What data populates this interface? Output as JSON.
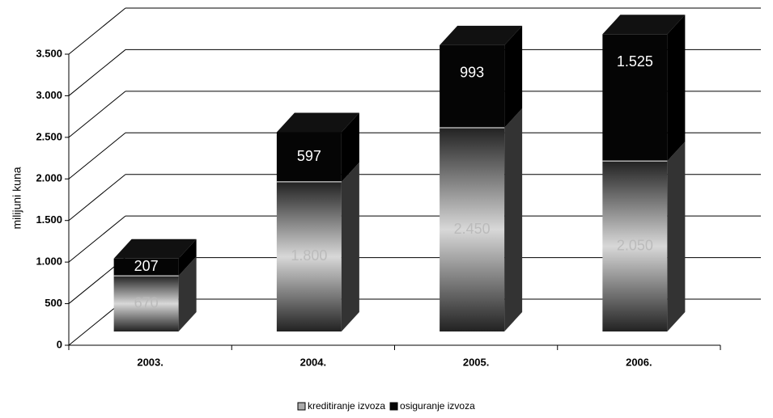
{
  "chart_data": {
    "type": "bar3d_stacked",
    "y_label": "milijuni kuna",
    "categories": [
      "2003.",
      "2004.",
      "2005.",
      "2006."
    ],
    "series": [
      {
        "name": "kreditiranje izvoza",
        "color": "#8c8c8c",
        "values": [
          670,
          1800,
          2450,
          2050
        ],
        "value_labels": [
          "670",
          "1.800",
          "2.450",
          "2.050"
        ]
      },
      {
        "name": "osiguranje izvoza",
        "color": "#050505",
        "values": [
          207,
          597,
          993,
          1525
        ],
        "value_labels": [
          "207",
          "597",
          "993",
          "1.525"
        ]
      }
    ],
    "ylim": [
      0,
      3500
    ],
    "yticks": [
      0,
      500,
      {
        "value": 1000,
        "label": "1.000"
      },
      {
        "value": 1500,
        "label": "1.500"
      },
      {
        "value": 2000,
        "label": "2.000"
      },
      {
        "value": 2500,
        "label": "2.500"
      },
      {
        "value": 3000,
        "label": "3.000"
      },
      {
        "value": 3500,
        "label": "3.500"
      }
    ],
    "grid": true,
    "legend": "bottom"
  }
}
